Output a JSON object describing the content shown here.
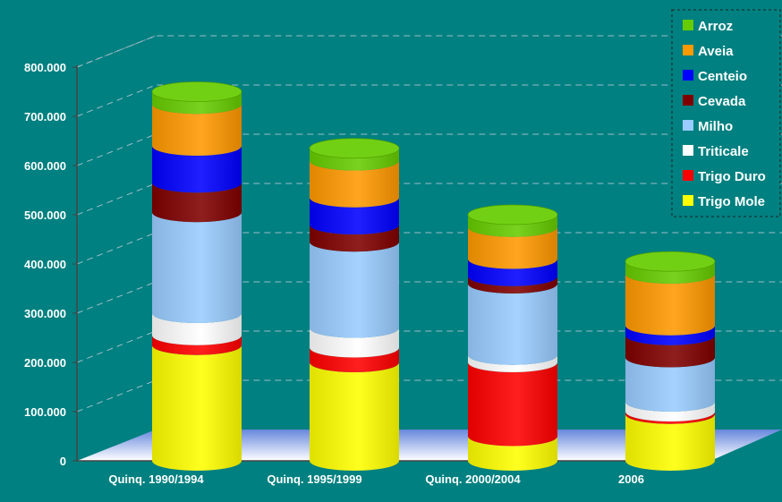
{
  "chart_data": {
    "type": "bar",
    "stacked": true,
    "style": "3d-cylinder",
    "categories": [
      "Quinq. 1990/1994",
      "Quinq. 1995/1999",
      "Quinq. 2000/2004",
      "2006"
    ],
    "ylim": [
      0,
      800000
    ],
    "yticks": [
      "0",
      "100.000",
      "200.000",
      "300.000",
      "400.000",
      "500.000",
      "600.000",
      "700.000",
      "800.000"
    ],
    "grid": true,
    "legend_position": "top-right",
    "series": [
      {
        "name": "Trigo Mole",
        "color": "#ffff00",
        "values": [
          235000,
          200000,
          50000,
          95000
        ]
      },
      {
        "name": "Trigo Duro",
        "color": "#ff0000",
        "values": [
          20000,
          30000,
          150000,
          5000
        ]
      },
      {
        "name": "Triticale",
        "color": "#ffffff",
        "values": [
          45000,
          40000,
          15000,
          20000
        ]
      },
      {
        "name": "Milho",
        "color": "#99ccff",
        "values": [
          205000,
          175000,
          145000,
          90000
        ]
      },
      {
        "name": "Cevada",
        "color": "#800000",
        "values": [
          60000,
          35000,
          15000,
          45000
        ]
      },
      {
        "name": "Centeio",
        "color": "#0000ff",
        "values": [
          75000,
          55000,
          35000,
          20000
        ]
      },
      {
        "name": "Aveia",
        "color": "#ff9900",
        "values": [
          85000,
          75000,
          65000,
          105000
        ]
      },
      {
        "name": "Arroz",
        "color": "#66cc00",
        "values": [
          25000,
          25000,
          25000,
          25000
        ]
      }
    ]
  }
}
